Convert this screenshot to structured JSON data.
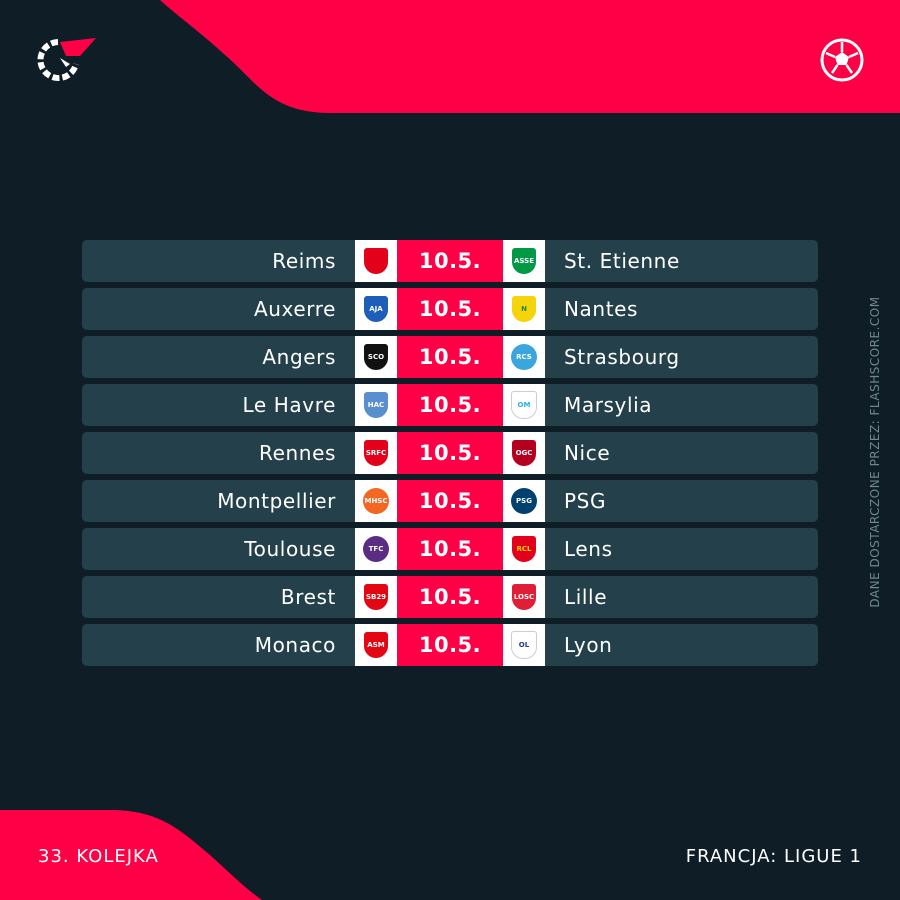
{
  "colors": {
    "background": "#0f1e26",
    "accent": "#ff0046",
    "row": "#24414b"
  },
  "header": {
    "logo_icon": "flashscore-logo",
    "sport_icon": "football-icon"
  },
  "matches": [
    {
      "home": "Reims",
      "date": "10.5.",
      "away": "St. Etienne",
      "home_crest": "reims-crest-icon",
      "away_crest": "st-etienne-crest-icon"
    },
    {
      "home": "Auxerre",
      "date": "10.5.",
      "away": "Nantes",
      "home_crest": "auxerre-crest-icon",
      "away_crest": "nantes-crest-icon"
    },
    {
      "home": "Angers",
      "date": "10.5.",
      "away": "Strasbourg",
      "home_crest": "angers-crest-icon",
      "away_crest": "strasbourg-crest-icon"
    },
    {
      "home": "Le Havre",
      "date": "10.5.",
      "away": "Marsylia",
      "home_crest": "le-havre-crest-icon",
      "away_crest": "marseille-crest-icon"
    },
    {
      "home": "Rennes",
      "date": "10.5.",
      "away": "Nice",
      "home_crest": "rennes-crest-icon",
      "away_crest": "nice-crest-icon"
    },
    {
      "home": "Montpellier",
      "date": "10.5.",
      "away": "PSG",
      "home_crest": "montpellier-crest-icon",
      "away_crest": "psg-crest-icon"
    },
    {
      "home": "Toulouse",
      "date": "10.5.",
      "away": "Lens",
      "home_crest": "toulouse-crest-icon",
      "away_crest": "lens-crest-icon"
    },
    {
      "home": "Brest",
      "date": "10.5.",
      "away": "Lille",
      "home_crest": "brest-crest-icon",
      "away_crest": "lille-crest-icon"
    },
    {
      "home": "Monaco",
      "date": "10.5.",
      "away": "Lyon",
      "home_crest": "monaco-crest-icon",
      "away_crest": "lyon-crest-icon"
    }
  ],
  "footer": {
    "round": "33. KOLEJKA",
    "league": "FRANCJA: LIGUE 1",
    "source_note": "DANE DOSTARCZONE PRZEZ: FLASHSCORE.COM"
  }
}
